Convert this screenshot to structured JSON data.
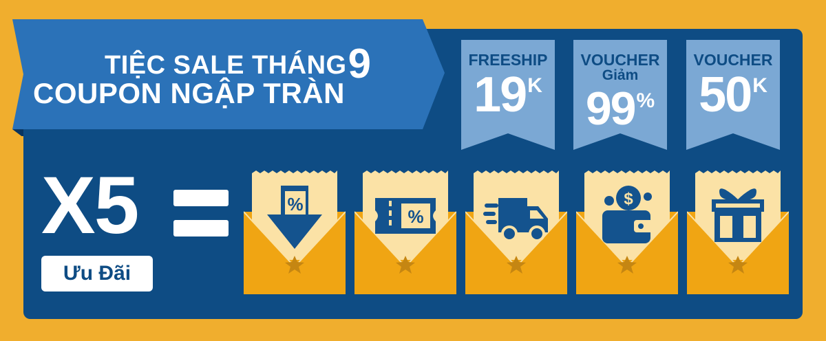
{
  "banner": {
    "line1": "TIỆC SALE THÁNG",
    "line1_num": "9",
    "line2": "COUPON NGẬP TRÀN"
  },
  "tags": [
    {
      "top": "FREESHIP",
      "value": "19",
      "unit": "K"
    },
    {
      "top": "VOUCHER",
      "sub": "Giảm",
      "value": "99",
      "unit": "%"
    },
    {
      "top": "VOUCHER",
      "value": "50",
      "unit": "K"
    }
  ],
  "offer": {
    "multiplier": "X5",
    "equals": "=",
    "label": "Ưu Đãi"
  },
  "envelope_icons": [
    "discount-arrow-icon",
    "ticket-percent-icon",
    "truck-icon",
    "wallet-coins-icon",
    "gift-box-icon"
  ],
  "colors": {
    "background": "#F0AE2E",
    "panel": "#0E4C84",
    "banner": "#2B72B8",
    "tag": "#7BA8D4",
    "envelope_top": "#FBE2A6",
    "envelope_bottom": "#F0A513",
    "icon": "#14538E",
    "star": "#C58612"
  }
}
